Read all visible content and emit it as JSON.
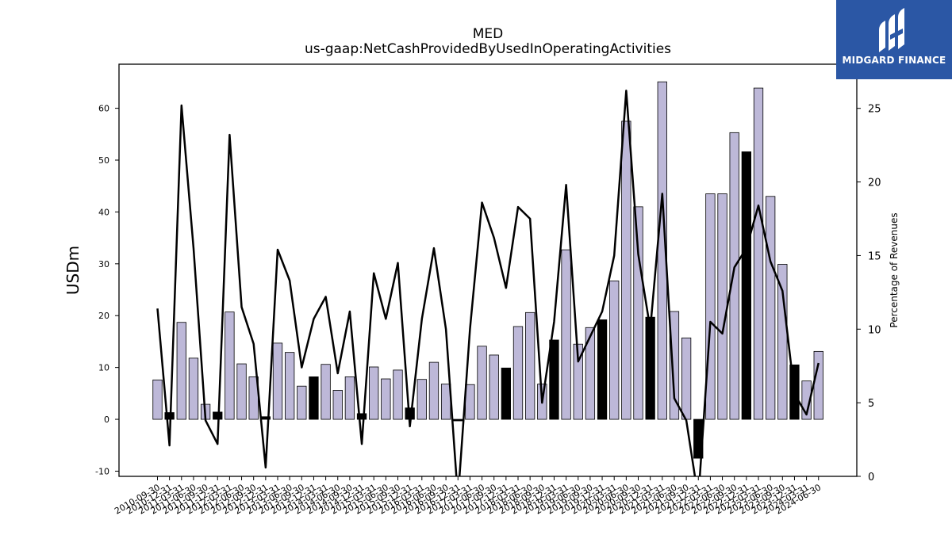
{
  "chart_data": {
    "type": "bar+line",
    "title": "MED",
    "subtitle": "us-gaap:NetCashProvidedByUsedInOperatingActivities",
    "ylabel_left": "USDm",
    "ylabel_right": "Percentage of Revenues",
    "ylim_left": [
      -11,
      68.5
    ],
    "ylim_right": [
      0,
      28
    ],
    "yticks_left": [
      -10,
      0,
      10,
      20,
      30,
      40,
      50,
      60
    ],
    "yticks_right": [
      0,
      5,
      10,
      15,
      20,
      25
    ],
    "categories": [
      "2010-09-30",
      "2010-12-31",
      "2011-03-31",
      "2011-06-30",
      "2011-09-30",
      "2011-12-31",
      "2012-03-31",
      "2012-06-30",
      "2012-09-30",
      "2012-12-31",
      "2013-03-31",
      "2013-06-30",
      "2013-09-30",
      "2013-12-31",
      "2014-03-31",
      "2014-06-30",
      "2014-09-30",
      "2014-12-31",
      "2015-03-31",
      "2015-06-30",
      "2015-09-30",
      "2015-12-31",
      "2016-03-31",
      "2016-06-30",
      "2016-09-30",
      "2016-12-31",
      "2017-03-31",
      "2017-06-30",
      "2017-09-30",
      "2017-12-31",
      "2018-03-31",
      "2018-06-30",
      "2018-09-30",
      "2018-12-31",
      "2019-03-31",
      "2019-06-30",
      "2019-09-30",
      "2019-12-31",
      "2020-03-31",
      "2020-06-30",
      "2020-09-30",
      "2020-12-31",
      "2021-03-31",
      "2021-06-30",
      "2021-09-30",
      "2021-12-31",
      "2022-03-31",
      "2022-06-30",
      "2022-09-30",
      "2022-12-31",
      "2023-03-31",
      "2023-06-30",
      "2023-09-30",
      "2023-12-31",
      "2024-03-31",
      "2024-06-30"
    ],
    "bar_values": [
      7.6,
      1.3,
      18.7,
      11.8,
      2.9,
      1.4,
      20.7,
      10.7,
      8.2,
      0.5,
      14.7,
      12.9,
      6.4,
      8.2,
      10.6,
      5.6,
      8.2,
      1.1,
      10.1,
      7.8,
      9.5,
      2.2,
      7.7,
      11.0,
      6.8,
      -0.3,
      6.7,
      14.1,
      12.4,
      9.9,
      17.9,
      20.6,
      6.8,
      15.3,
      32.7,
      14.5,
      17.7,
      19.2,
      26.7,
      57.5,
      41.0,
      19.7,
      65.1,
      20.8,
      15.7,
      -7.5,
      43.5,
      43.5,
      55.3,
      51.6,
      63.9,
      43.0,
      29.9,
      10.5,
      7.4,
      13.1
    ],
    "bar_highlight": [
      false,
      true,
      false,
      false,
      false,
      true,
      false,
      false,
      false,
      true,
      false,
      false,
      false,
      true,
      false,
      false,
      false,
      true,
      false,
      false,
      false,
      true,
      false,
      false,
      false,
      true,
      false,
      false,
      false,
      true,
      false,
      false,
      false,
      true,
      false,
      false,
      false,
      true,
      false,
      false,
      false,
      true,
      false,
      false,
      false,
      true,
      false,
      false,
      false,
      true,
      false,
      false,
      false,
      true,
      false,
      false
    ],
    "line_values": [
      11.4,
      2.1,
      25.2,
      15.5,
      3.8,
      2.2,
      23.2,
      11.5,
      9.0,
      0.6,
      15.4,
      13.3,
      7.4,
      10.7,
      12.2,
      7.0,
      11.2,
      2.2,
      13.8,
      10.7,
      14.5,
      3.4,
      10.7,
      15.5,
      10.0,
      -1.5,
      10.0,
      18.6,
      16.2,
      12.8,
      18.3,
      17.5,
      5.0,
      10.5,
      19.8,
      7.8,
      9.5,
      11.2,
      15.0,
      26.2,
      15.1,
      10.0,
      19.2,
      5.3,
      3.8,
      -1.5,
      10.5,
      9.7,
      14.2,
      15.5,
      18.4,
      14.6,
      12.6,
      5.6,
      4.2,
      7.7
    ],
    "colors": {
      "bar": "#bdb8d8",
      "bar_highlight": "#000000",
      "line": "#000000",
      "logo_bg": "#2b57a5"
    },
    "grid": false
  },
  "logo": {
    "text": "MIDGARD FINANCE",
    "icon": "midgard-logo-icon"
  }
}
